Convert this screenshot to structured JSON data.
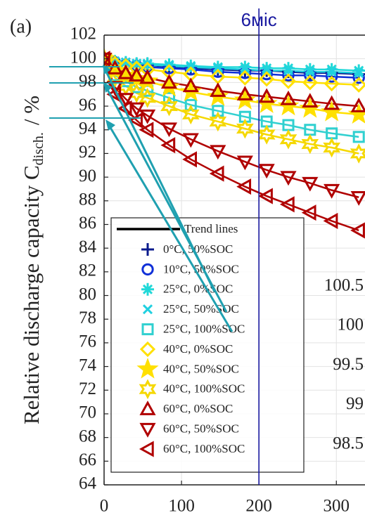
{
  "panel_label": "(a)",
  "chart_data": {
    "type": "line",
    "ylabel": "Relative discharge capacity C",
    "ylabel_sub": "disch.",
    "ylabel_unit": "/ %",
    "x": [
      0,
      14,
      28,
      42,
      56,
      84,
      112,
      147,
      182,
      210,
      238,
      266,
      294,
      329
    ],
    "xlim": [
      0,
      337
    ],
    "xticks": [
      0,
      100,
      200,
      300
    ],
    "ylim": [
      64,
      102
    ],
    "yticks": [
      64,
      66,
      68,
      70,
      72,
      74,
      76,
      78,
      80,
      82,
      84,
      86,
      88,
      90,
      92,
      94,
      96,
      98,
      100,
      102
    ],
    "grid": true,
    "trend_label": "Trend lines",
    "vline": {
      "x": 200,
      "label": "6міс",
      "color": "#1a1aa0"
    },
    "series": [
      {
        "name": "0°C, 50%SOC",
        "color": "#0a1a8c",
        "marker": "plus",
        "values": [
          100,
          99.7,
          99.6,
          99.5,
          99.5,
          99.3,
          99.2,
          99.1,
          99.0,
          99.0,
          98.9,
          98.8,
          98.8,
          98.7
        ]
      },
      {
        "name": "10°C, 50%SOC",
        "color": "#1030d8",
        "marker": "circle",
        "values": [
          100,
          99.7,
          99.5,
          99.4,
          99.3,
          99.2,
          99.1,
          98.9,
          98.8,
          98.7,
          98.6,
          98.6,
          98.5,
          98.4
        ]
      },
      {
        "name": "25°C, 0%SOC",
        "color": "#20d8d8",
        "marker": "asterisk",
        "values": [
          100,
          99.8,
          99.7,
          99.6,
          99.6,
          99.5,
          99.4,
          99.3,
          99.3,
          99.2,
          99.2,
          99.1,
          99.1,
          99.0
        ]
      },
      {
        "name": "25°C, 50%SOC",
        "color": "#20d0e0",
        "marker": "x",
        "values": [
          100,
          99.8,
          99.7,
          99.6,
          99.5,
          99.4,
          99.3,
          99.2,
          99.1,
          99.0,
          99.0,
          98.9,
          98.9,
          98.8
        ]
      },
      {
        "name": "25°C, 100%SOC",
        "color": "#30d0d0",
        "marker": "square",
        "values": [
          100,
          98.6,
          98.1,
          97.6,
          97.3,
          96.7,
          96.1,
          95.6,
          95.1,
          94.7,
          94.4,
          94.0,
          93.7,
          93.4
        ]
      },
      {
        "name": "40°C, 0%SOC",
        "color": "#ffe000",
        "marker": "diamond",
        "values": [
          100,
          99.6,
          99.4,
          99.2,
          99.1,
          98.9,
          98.7,
          98.5,
          98.4,
          98.3,
          98.1,
          98.0,
          97.9,
          97.8
        ]
      },
      {
        "name": "40°C, 50%SOC",
        "color": "#ffe000",
        "marker": "star",
        "values": [
          100,
          99.0,
          98.6,
          98.3,
          98.1,
          97.6,
          97.2,
          96.8,
          96.5,
          96.2,
          96.0,
          95.8,
          95.5,
          95.3
        ]
      },
      {
        "name": "40°C, 100%SOC",
        "color": "#f5d800",
        "marker": "hexagram",
        "values": [
          100,
          98.4,
          97.7,
          97.1,
          96.7,
          96.0,
          95.3,
          94.7,
          94.1,
          93.6,
          93.2,
          92.8,
          92.5,
          92.0
        ]
      },
      {
        "name": "60°C, 0%SOC",
        "color": "#b00000",
        "marker": "triangle-up",
        "values": [
          100,
          99.2,
          98.8,
          98.6,
          98.4,
          98.0,
          97.7,
          97.3,
          97.0,
          96.8,
          96.6,
          96.4,
          96.2,
          96.0
        ]
      },
      {
        "name": "60°C, 50%SOC",
        "color": "#b00000",
        "marker": "triangle-down",
        "values": [
          100,
          97.6,
          96.6,
          95.8,
          95.2,
          94.1,
          93.2,
          92.2,
          91.3,
          90.6,
          90.0,
          89.5,
          88.9,
          88.3
        ]
      },
      {
        "name": "60°C, 100%SOC",
        "color": "#b00000",
        "marker": "triangle-left",
        "values": [
          100,
          97.0,
          95.8,
          94.8,
          94.0,
          92.7,
          91.5,
          90.3,
          89.2,
          88.4,
          87.7,
          87.0,
          86.3,
          85.5
        ]
      }
    ]
  },
  "inset": {
    "ylim": [
      98.3,
      100.8
    ],
    "yticks": [
      98.5,
      99,
      99.5,
      100,
      100.5
    ]
  }
}
